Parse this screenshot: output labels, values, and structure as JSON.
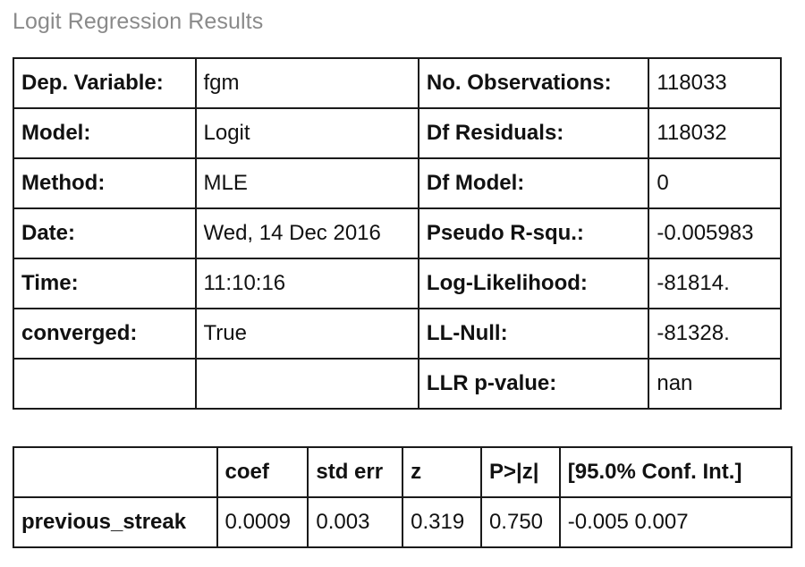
{
  "caption": "Logit Regression Results",
  "summary": {
    "rows": [
      {
        "l1": "Dep. Variable:",
        "v1": "fgm",
        "l2": "No. Observations:",
        "v2": "118033"
      },
      {
        "l1": "Model:",
        "v1": "Logit",
        "l2": "Df Residuals:",
        "v2": "118032"
      },
      {
        "l1": "Method:",
        "v1": "MLE",
        "l2": "Df Model:",
        "v2": "0"
      },
      {
        "l1": "Date:",
        "v1": "Wed, 14 Dec 2016",
        "l2": "Pseudo R-squ.:",
        "v2": "-0.005983"
      },
      {
        "l1": "Time:",
        "v1": "11:10:16",
        "l2": "Log-Likelihood:",
        "v2": "-81814."
      },
      {
        "l1": "converged:",
        "v1": "True",
        "l2": "LL-Null:",
        "v2": "-81328."
      },
      {
        "l1": "",
        "v1": "",
        "l2": "LLR p-value:",
        "v2": "nan"
      }
    ]
  },
  "coef": {
    "headers": [
      "",
      "coef",
      "std err",
      "z",
      "P>|z|",
      "[95.0% Conf. Int.]"
    ],
    "rows": [
      {
        "name": "previous_streak",
        "coef": "0.0009",
        "std_err": "0.003",
        "z": "0.319",
        "p": "0.750",
        "ci": "-0.005 0.007"
      }
    ]
  }
}
